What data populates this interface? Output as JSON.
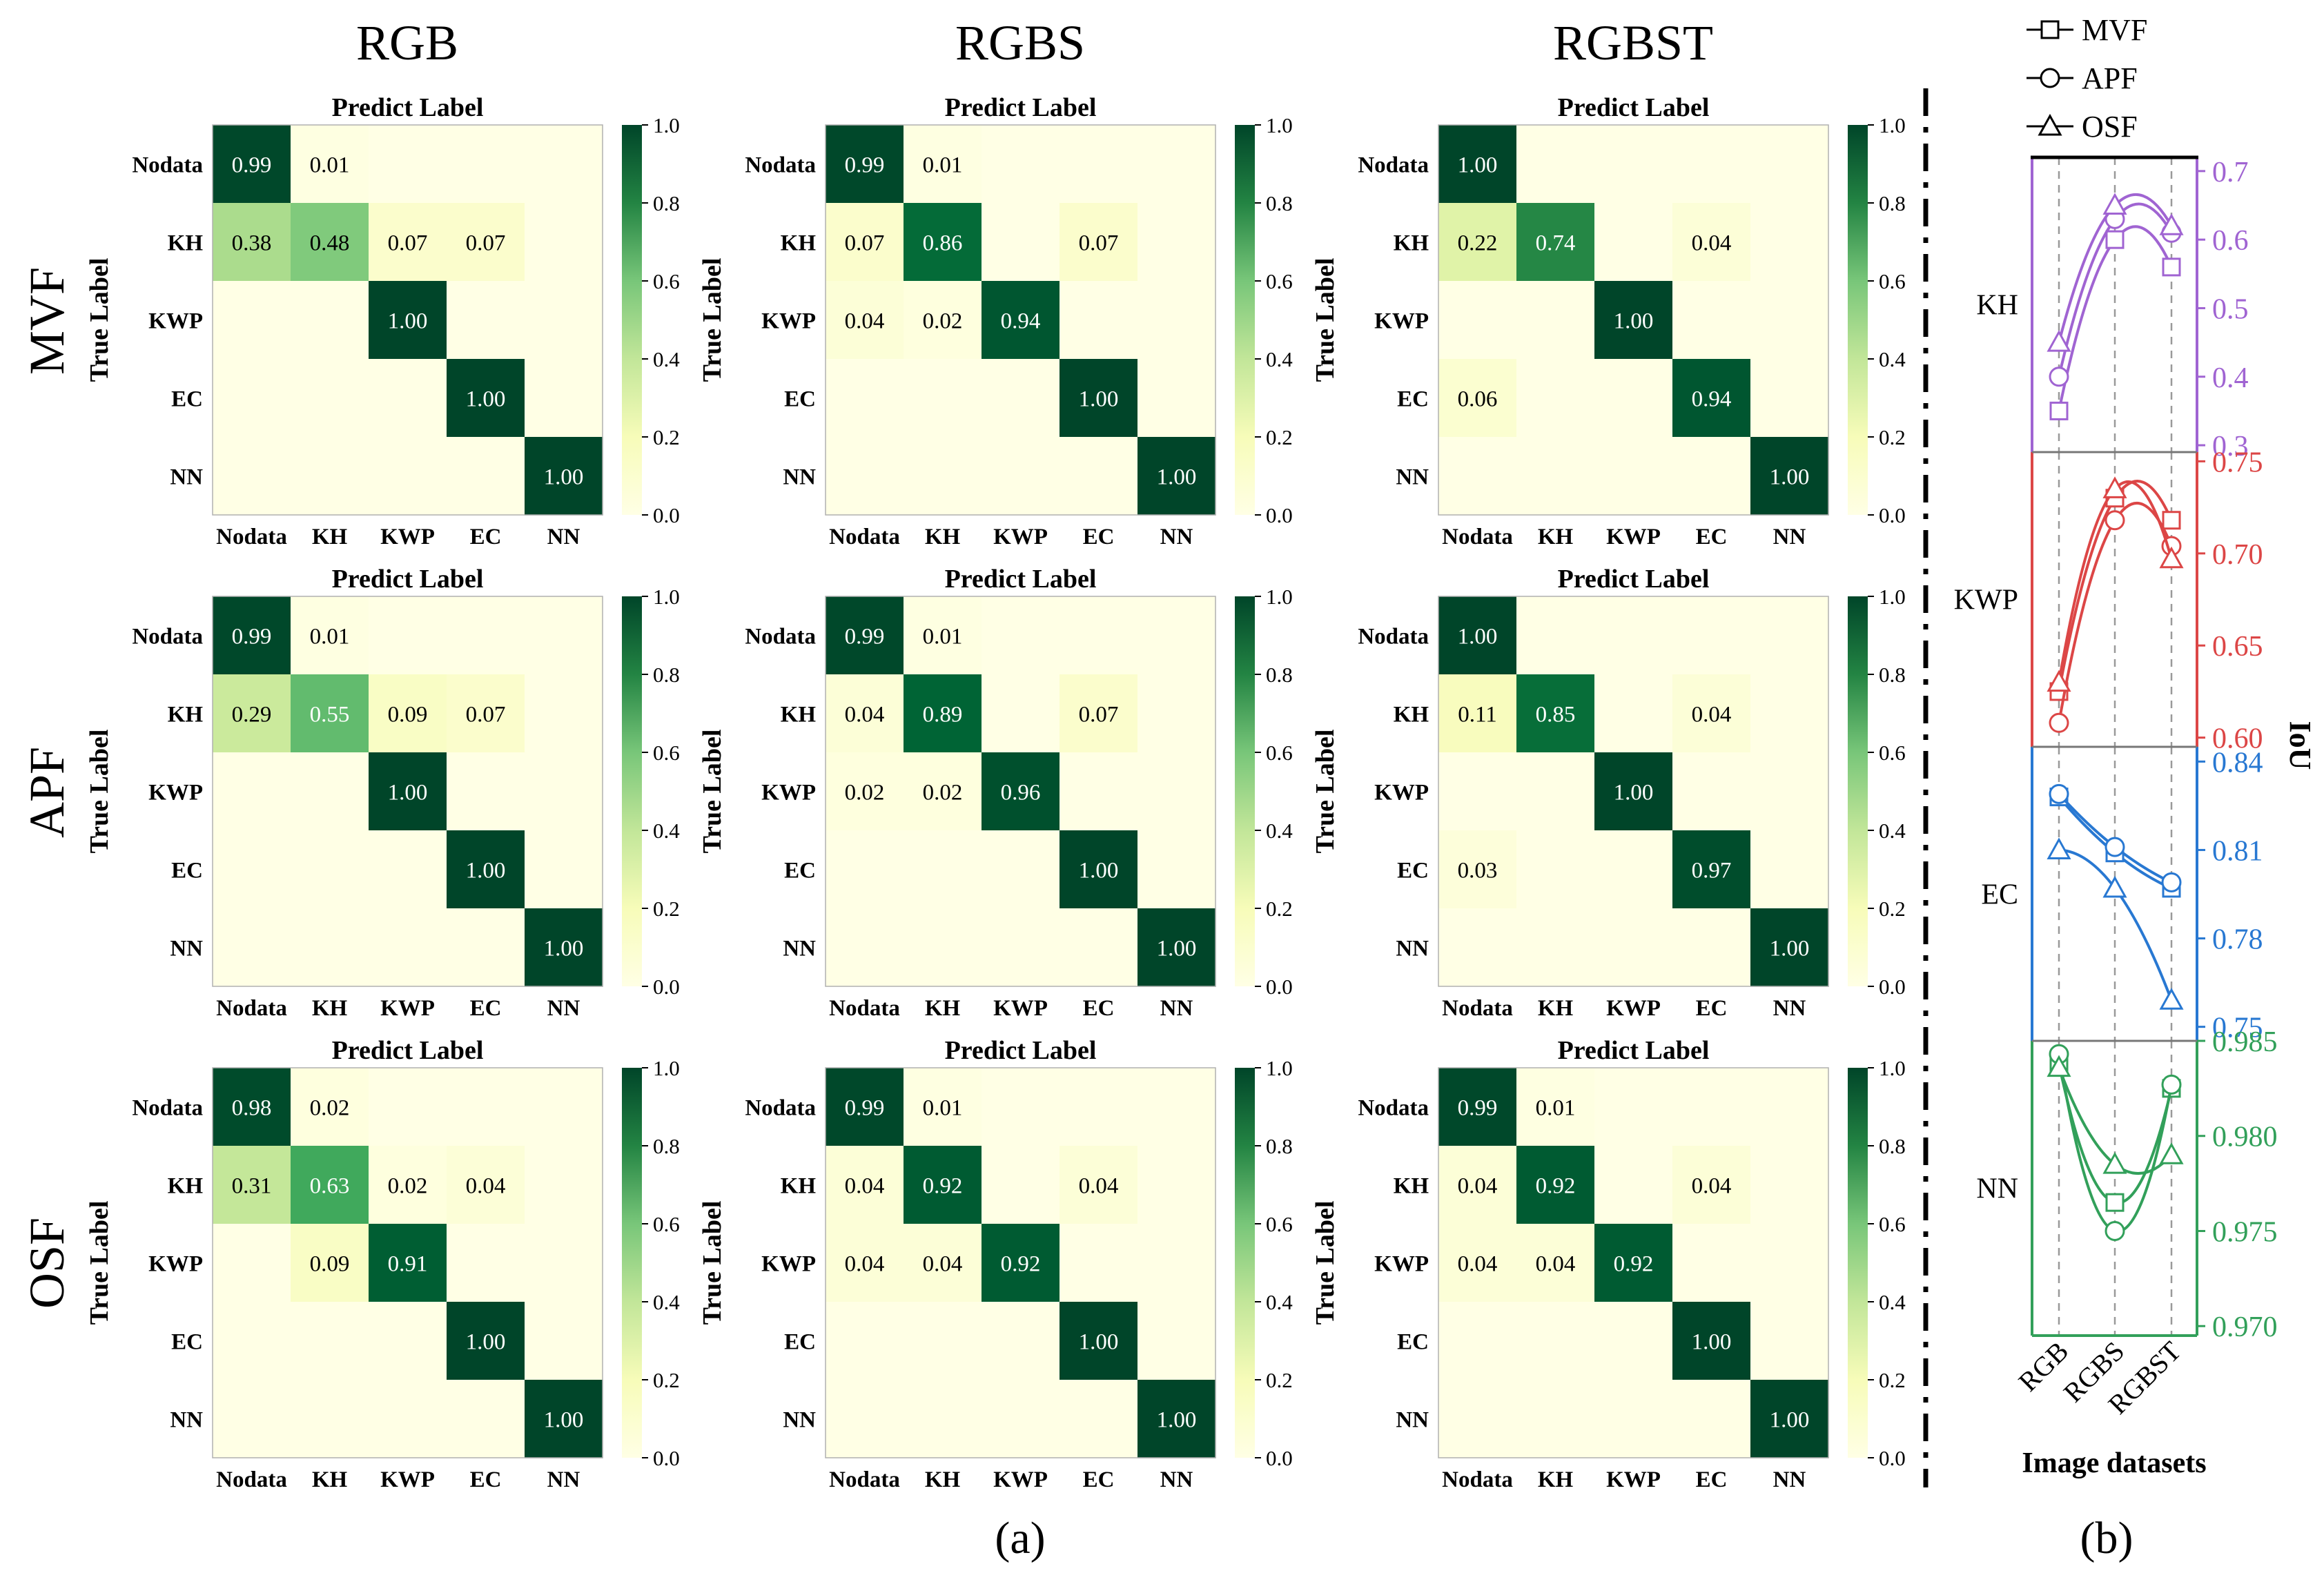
{
  "figure": {
    "col_headers": [
      "RGB",
      "RGBS",
      "RGBST"
    ],
    "row_headers": [
      "MVF",
      "APF",
      "OSF"
    ],
    "panel_a_label": "(a)",
    "panel_b_label": "(b)"
  },
  "chart_data": [
    {
      "type": "heatmap",
      "title": "Predict Label",
      "ylabel": "True Label",
      "classes": [
        "Nodata",
        "KH",
        "KWP",
        "EC",
        "NN"
      ],
      "colorbar": {
        "ticks": [
          "0.0",
          "0.2",
          "0.4",
          "0.6",
          "0.8",
          "1.0"
        ],
        "vmin": 0,
        "vmax": 1,
        "low_color": "#ffffe5",
        "high_color": "#004529"
      },
      "matrices": [
        {
          "model": "MVF",
          "dataset": "RGB",
          "cells": [
            [
              "0.99",
              "0.01",
              "",
              "",
              ""
            ],
            [
              "0.38",
              "0.48",
              "0.07",
              "0.07",
              ""
            ],
            [
              "",
              "",
              "1.00",
              "",
              ""
            ],
            [
              "",
              "",
              "",
              "1.00",
              ""
            ],
            [
              "",
              "",
              "",
              "",
              "1.00"
            ]
          ]
        },
        {
          "model": "MVF",
          "dataset": "RGBS",
          "cells": [
            [
              "0.99",
              "0.01",
              "",
              "",
              ""
            ],
            [
              "0.07",
              "0.86",
              "",
              "0.07",
              ""
            ],
            [
              "0.04",
              "0.02",
              "0.94",
              "",
              ""
            ],
            [
              "",
              "",
              "",
              "1.00",
              ""
            ],
            [
              "",
              "",
              "",
              "",
              "1.00"
            ]
          ]
        },
        {
          "model": "MVF",
          "dataset": "RGBST",
          "cells": [
            [
              "1.00",
              "",
              "",
              "",
              ""
            ],
            [
              "0.22",
              "0.74",
              "",
              "0.04",
              ""
            ],
            [
              "",
              "",
              "1.00",
              "",
              ""
            ],
            [
              "0.06",
              "",
              "",
              "0.94",
              ""
            ],
            [
              "",
              "",
              "",
              "",
              "1.00"
            ]
          ]
        },
        {
          "model": "APF",
          "dataset": "RGB",
          "cells": [
            [
              "0.99",
              "0.01",
              "",
              "",
              ""
            ],
            [
              "0.29",
              "0.55",
              "0.09",
              "0.07",
              ""
            ],
            [
              "",
              "",
              "1.00",
              "",
              ""
            ],
            [
              "",
              "",
              "",
              "1.00",
              ""
            ],
            [
              "",
              "",
              "",
              "",
              "1.00"
            ]
          ]
        },
        {
          "model": "APF",
          "dataset": "RGBS",
          "cells": [
            [
              "0.99",
              "0.01",
              "",
              "",
              ""
            ],
            [
              "0.04",
              "0.89",
              "",
              "0.07",
              ""
            ],
            [
              "0.02",
              "0.02",
              "0.96",
              "",
              ""
            ],
            [
              "",
              "",
              "",
              "1.00",
              ""
            ],
            [
              "",
              "",
              "",
              "",
              "1.00"
            ]
          ]
        },
        {
          "model": "APF",
          "dataset": "RGBST",
          "cells": [
            [
              "1.00",
              "",
              "",
              "",
              ""
            ],
            [
              "0.11",
              "0.85",
              "",
              "0.04",
              ""
            ],
            [
              "",
              "",
              "1.00",
              "",
              ""
            ],
            [
              "0.03",
              "",
              "",
              "0.97",
              ""
            ],
            [
              "",
              "",
              "",
              "",
              "1.00"
            ]
          ]
        },
        {
          "model": "OSF",
          "dataset": "RGB",
          "cells": [
            [
              "0.98",
              "0.02",
              "",
              "",
              ""
            ],
            [
              "0.31",
              "0.63",
              "0.02",
              "0.04",
              ""
            ],
            [
              "",
              "0.09",
              "0.91",
              "",
              ""
            ],
            [
              "",
              "",
              "",
              "1.00",
              ""
            ],
            [
              "",
              "",
              "",
              "",
              "1.00"
            ]
          ]
        },
        {
          "model": "OSF",
          "dataset": "RGBS",
          "cells": [
            [
              "0.99",
              "0.01",
              "",
              "",
              ""
            ],
            [
              "0.04",
              "0.92",
              "",
              "0.04",
              ""
            ],
            [
              "0.04",
              "0.04",
              "0.92",
              "",
              ""
            ],
            [
              "",
              "",
              "",
              "1.00",
              ""
            ],
            [
              "",
              "",
              "",
              "",
              "1.00"
            ]
          ]
        },
        {
          "model": "OSF",
          "dataset": "RGBST",
          "cells": [
            [
              "0.99",
              "0.01",
              "",
              "",
              ""
            ],
            [
              "0.04",
              "0.92",
              "",
              "0.04",
              ""
            ],
            [
              "0.04",
              "0.04",
              "0.92",
              "",
              ""
            ],
            [
              "",
              "",
              "",
              "1.00",
              ""
            ],
            [
              "",
              "",
              "",
              "",
              "1.00"
            ]
          ]
        }
      ]
    },
    {
      "type": "line",
      "xlabel": "Image datasets",
      "ylabel": "IoU",
      "categories": [
        "RGB",
        "RGBS",
        "RGBST"
      ],
      "legend": [
        {
          "name": "MVF",
          "marker": "square"
        },
        {
          "name": "APF",
          "marker": "circle"
        },
        {
          "name": "OSF",
          "marker": "triangle"
        }
      ],
      "panels": [
        {
          "name": "KH",
          "color": "#a064d2",
          "ylim": [
            0.29,
            0.72
          ],
          "ticks": [
            "0.3",
            "0.4",
            "0.5",
            "0.6",
            "0.7"
          ],
          "series": [
            {
              "name": "MVF",
              "values": [
                0.35,
                0.6,
                0.56
              ]
            },
            {
              "name": "APF",
              "values": [
                0.4,
                0.63,
                0.61
              ]
            },
            {
              "name": "OSF",
              "values": [
                0.45,
                0.65,
                0.62
              ]
            }
          ]
        },
        {
          "name": "KWP",
          "color": "#dc4646",
          "ylim": [
            0.595,
            0.755
          ],
          "ticks": [
            "0.60",
            "0.65",
            "0.70",
            "0.75"
          ],
          "series": [
            {
              "name": "MVF",
              "values": [
                0.625,
                0.73,
                0.718
              ]
            },
            {
              "name": "APF",
              "values": [
                0.608,
                0.718,
                0.704
              ]
            },
            {
              "name": "OSF",
              "values": [
                0.63,
                0.735,
                0.697
              ]
            }
          ]
        },
        {
          "name": "EC",
          "color": "#2878d2",
          "ylim": [
            0.745,
            0.845
          ],
          "ticks": [
            "0.75",
            "0.78",
            "0.81",
            "0.84"
          ],
          "series": [
            {
              "name": "MVF",
              "values": [
                0.828,
                0.809,
                0.797
              ]
            },
            {
              "name": "APF",
              "values": [
                0.829,
                0.811,
                0.799
              ]
            },
            {
              "name": "OSF",
              "values": [
                0.81,
                0.797,
                0.759
              ]
            }
          ]
        },
        {
          "name": "NN",
          "color": "#32a05a",
          "ylim": [
            0.9695,
            0.985
          ],
          "ticks": [
            "0.970",
            "0.975",
            "0.980",
            "0.985"
          ],
          "series": [
            {
              "name": "MVF",
              "values": [
                0.9838,
                0.9765,
                0.9825
              ]
            },
            {
              "name": "APF",
              "values": [
                0.9843,
                0.975,
                0.9827
              ]
            },
            {
              "name": "OSF",
              "values": [
                0.9836,
                0.9785,
                0.979
              ]
            }
          ]
        }
      ]
    }
  ]
}
